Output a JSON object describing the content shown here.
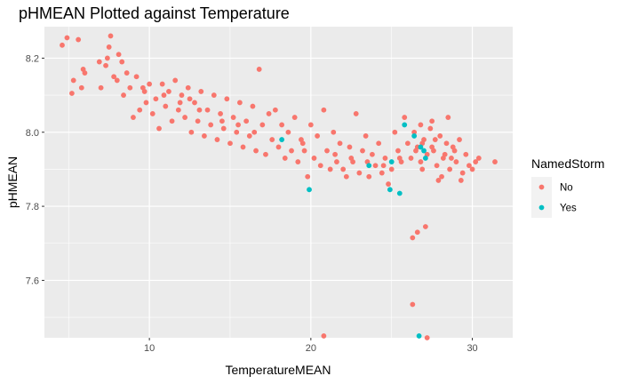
{
  "chart_data": {
    "type": "scatter",
    "title": "pHMEAN Plotted against Temperature",
    "xlabel": "TemperatureMEAN",
    "ylabel": "pHMEAN",
    "xlim": [
      3.5,
      32.5
    ],
    "ylim": [
      7.445,
      8.285
    ],
    "x_ticks": [
      10,
      20,
      30
    ],
    "y_ticks": [
      7.6,
      7.8,
      8.0,
      8.2
    ],
    "grid": true,
    "legend": {
      "title": "NamedStorm",
      "position": "right"
    },
    "series": [
      {
        "name": "No",
        "color": "#F8766D",
        "points": [
          [
            4.6,
            8.235
          ],
          [
            4.9,
            8.255
          ],
          [
            5.6,
            8.25
          ],
          [
            5.2,
            8.105
          ],
          [
            5.3,
            8.14
          ],
          [
            5.9,
            8.17
          ],
          [
            6.0,
            8.16
          ],
          [
            5.8,
            8.12
          ],
          [
            6.9,
            8.19
          ],
          [
            7.0,
            8.12
          ],
          [
            7.3,
            8.18
          ],
          [
            7.5,
            8.23
          ],
          [
            7.6,
            8.26
          ],
          [
            7.4,
            8.2
          ],
          [
            7.8,
            8.15
          ],
          [
            8.0,
            8.14
          ],
          [
            8.1,
            8.21
          ],
          [
            8.3,
            8.19
          ],
          [
            8.4,
            8.1
          ],
          [
            8.6,
            8.16
          ],
          [
            8.8,
            8.12
          ],
          [
            9.0,
            8.04
          ],
          [
            9.2,
            8.15
          ],
          [
            9.4,
            8.06
          ],
          [
            9.6,
            8.12
          ],
          [
            9.8,
            8.08
          ],
          [
            10.0,
            8.13
          ],
          [
            10.2,
            8.05
          ],
          [
            10.4,
            8.09
          ],
          [
            10.6,
            8.01
          ],
          [
            10.8,
            8.13
          ],
          [
            11.0,
            8.07
          ],
          [
            11.2,
            8.11
          ],
          [
            11.4,
            8.03
          ],
          [
            11.6,
            8.14
          ],
          [
            11.8,
            8.06
          ],
          [
            12.0,
            8.1
          ],
          [
            12.2,
            8.04
          ],
          [
            12.4,
            8.12
          ],
          [
            12.6,
            8.0
          ],
          [
            12.8,
            8.08
          ],
          [
            13.0,
            8.03
          ],
          [
            13.2,
            8.11
          ],
          [
            13.4,
            7.99
          ],
          [
            13.6,
            8.06
          ],
          [
            13.8,
            8.02
          ],
          [
            14.0,
            8.1
          ],
          [
            14.2,
            7.98
          ],
          [
            14.4,
            8.05
          ],
          [
            14.6,
            8.01
          ],
          [
            14.8,
            8.09
          ],
          [
            15.0,
            7.97
          ],
          [
            15.2,
            8.04
          ],
          [
            15.4,
            8.0
          ],
          [
            15.6,
            8.08
          ],
          [
            15.8,
            7.96
          ],
          [
            16.0,
            8.03
          ],
          [
            16.2,
            7.99
          ],
          [
            16.4,
            8.07
          ],
          [
            16.6,
            7.95
          ],
          [
            16.8,
            8.17
          ],
          [
            17.0,
            8.02
          ],
          [
            17.2,
            7.94
          ],
          [
            17.4,
            8.05
          ],
          [
            17.6,
            7.98
          ],
          [
            17.8,
            8.06
          ],
          [
            18.0,
            7.96
          ],
          [
            18.2,
            8.02
          ],
          [
            18.4,
            7.93
          ],
          [
            18.6,
            8.0
          ],
          [
            18.8,
            7.95
          ],
          [
            19.0,
            8.04
          ],
          [
            19.2,
            7.92
          ],
          [
            19.4,
            7.98
          ],
          [
            19.6,
            7.95
          ],
          [
            19.8,
            7.88
          ],
          [
            20.0,
            8.02
          ],
          [
            20.2,
            7.93
          ],
          [
            20.4,
            7.99
          ],
          [
            20.6,
            7.91
          ],
          [
            20.8,
            8.06
          ],
          [
            21.0,
            7.95
          ],
          [
            21.2,
            7.9
          ],
          [
            21.4,
            8.0
          ],
          [
            21.6,
            7.92
          ],
          [
            21.8,
            7.97
          ],
          [
            22.0,
            7.9
          ],
          [
            22.2,
            7.88
          ],
          [
            22.4,
            7.96
          ],
          [
            22.6,
            7.92
          ],
          [
            22.8,
            8.05
          ],
          [
            23.0,
            7.89
          ],
          [
            23.2,
            7.95
          ],
          [
            23.4,
            7.99
          ],
          [
            23.6,
            7.88
          ],
          [
            23.8,
            7.94
          ],
          [
            24.0,
            7.91
          ],
          [
            24.2,
            7.97
          ],
          [
            24.4,
            7.89
          ],
          [
            24.6,
            7.93
          ],
          [
            24.8,
            7.86
          ],
          [
            25.0,
            7.9
          ],
          [
            25.2,
            8.0
          ],
          [
            25.4,
            7.95
          ],
          [
            25.6,
            7.92
          ],
          [
            25.8,
            8.04
          ],
          [
            26.0,
            7.97
          ],
          [
            26.2,
            7.93
          ],
          [
            26.4,
            8.0
          ],
          [
            26.6,
            7.96
          ],
          [
            26.8,
            7.92
          ],
          [
            27.0,
            7.98
          ],
          [
            27.2,
            7.94
          ],
          [
            27.4,
            8.01
          ],
          [
            27.6,
            7.95
          ],
          [
            27.8,
            7.91
          ],
          [
            28.0,
            7.99
          ],
          [
            28.2,
            7.93
          ],
          [
            28.4,
            7.97
          ],
          [
            28.6,
            7.9
          ],
          [
            28.8,
            7.96
          ],
          [
            29.0,
            7.92
          ],
          [
            29.2,
            7.98
          ],
          [
            29.4,
            7.89
          ],
          [
            29.6,
            7.94
          ],
          [
            29.8,
            7.91
          ],
          [
            30.0,
            7.9
          ],
          [
            30.4,
            7.93
          ],
          [
            31.4,
            7.92
          ],
          [
            26.3,
            7.715
          ],
          [
            26.6,
            7.73
          ],
          [
            27.1,
            7.745
          ],
          [
            26.3,
            7.535
          ],
          [
            20.8,
            7.45
          ],
          [
            27.2,
            7.445
          ],
          [
            26.9,
            7.9
          ],
          [
            27.9,
            7.87
          ],
          [
            28.5,
            8.04
          ],
          [
            27.5,
            8.03
          ],
          [
            26.8,
            8.02
          ],
          [
            28.9,
            7.95
          ],
          [
            29.3,
            7.87
          ],
          [
            30.2,
            7.92
          ],
          [
            28.1,
            7.88
          ],
          [
            12.5,
            8.09
          ],
          [
            13.1,
            8.06
          ],
          [
            11.9,
            8.08
          ],
          [
            10.9,
            8.1
          ],
          [
            9.7,
            8.11
          ],
          [
            14.5,
            8.03
          ],
          [
            15.5,
            8.02
          ],
          [
            16.5,
            8.0
          ],
          [
            19.5,
            7.97
          ],
          [
            21.5,
            7.94
          ],
          [
            22.5,
            7.93
          ],
          [
            23.5,
            7.92
          ],
          [
            24.5,
            7.91
          ],
          [
            25.5,
            7.93
          ],
          [
            26.5,
            7.95
          ],
          [
            27.5,
            7.96
          ],
          [
            28.3,
            7.94
          ],
          [
            27.7,
            7.98
          ],
          [
            26.9,
            7.97
          ],
          [
            28.7,
            7.93
          ]
        ]
      },
      {
        "name": "Yes",
        "color": "#00BFC4",
        "points": [
          [
            18.2,
            7.98
          ],
          [
            19.9,
            7.845
          ],
          [
            23.6,
            7.91
          ],
          [
            25.0,
            7.92
          ],
          [
            24.9,
            7.845
          ],
          [
            25.5,
            7.835
          ],
          [
            25.8,
            8.02
          ],
          [
            26.4,
            7.99
          ],
          [
            26.8,
            7.96
          ],
          [
            27.0,
            7.95
          ],
          [
            27.1,
            7.93
          ],
          [
            26.7,
            7.45
          ]
        ]
      }
    ]
  }
}
